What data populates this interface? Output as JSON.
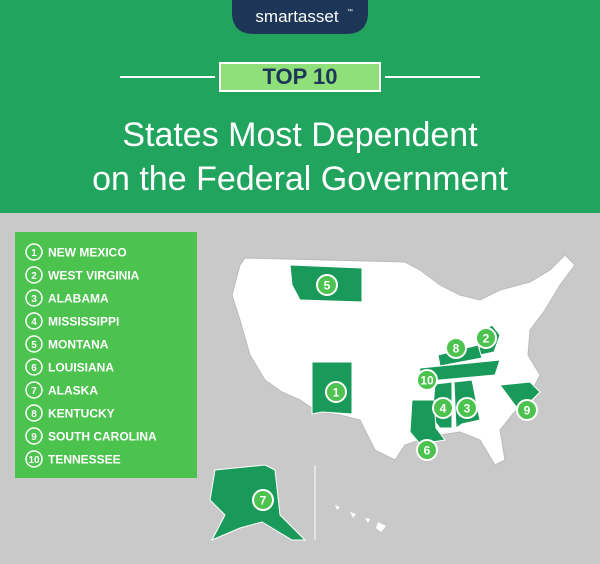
{
  "logo": "smartasset",
  "logo_mark": "™",
  "badge": "TOP 10",
  "title": [
    "States Most Dependent",
    "on the Federal Government"
  ],
  "ranking": [
    {
      "rank": 1,
      "state": "NEW MEXICO"
    },
    {
      "rank": 2,
      "state": "WEST VIRGINIA"
    },
    {
      "rank": 3,
      "state": "ALABAMA"
    },
    {
      "rank": 4,
      "state": "MISSISSIPPI"
    },
    {
      "rank": 5,
      "state": "MONTANA"
    },
    {
      "rank": 6,
      "state": "LOUISIANA"
    },
    {
      "rank": 7,
      "state": "ALASKA"
    },
    {
      "rank": 8,
      "state": "KENTUCKY"
    },
    {
      "rank": 9,
      "state": "SOUTH CAROLINA"
    },
    {
      "rank": 10,
      "state": "TENNESSEE"
    }
  ]
}
